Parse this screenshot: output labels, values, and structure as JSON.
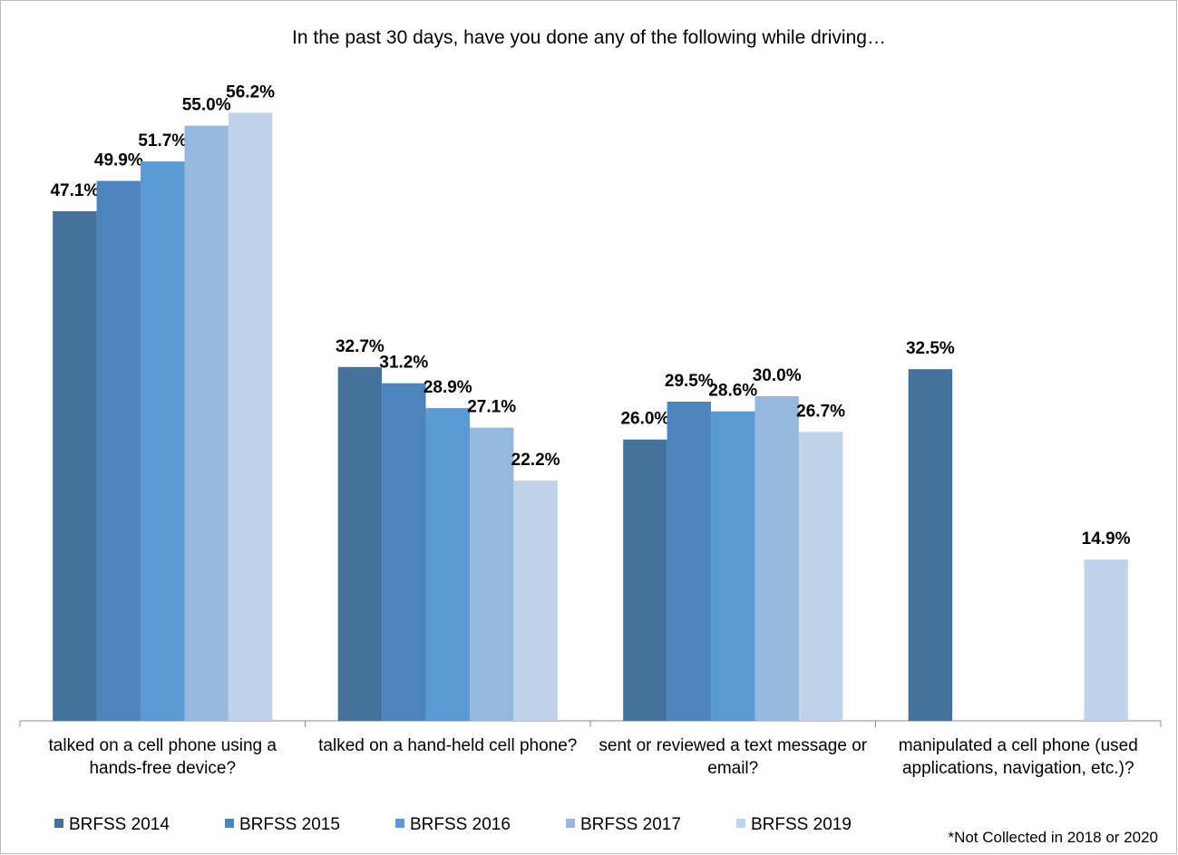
{
  "chart_data": {
    "type": "bar",
    "title": "In the past 30 days, have you done any of the following while driving…",
    "categories": [
      "talked on a cell phone using a hands-free device?",
      "talked on a hand-held cell phone?",
      "sent or reviewed a text message or email?",
      "manipulated a cell phone (used applications, navigation, etc.)?"
    ],
    "series": [
      {
        "name": "BRFSS 2014",
        "color": "#44729d",
        "values": [
          47.1,
          32.7,
          26.0,
          32.5
        ],
        "value_labels": [
          "47.1%",
          "32.7%",
          "26.0%",
          "32.5%"
        ]
      },
      {
        "name": "BRFSS 2015",
        "color": "#4f83bb",
        "values": [
          49.9,
          31.2,
          29.5,
          null
        ],
        "value_labels": [
          "49.9%",
          "31.2%",
          "29.5%",
          null
        ]
      },
      {
        "name": "BRFSS 2016",
        "color": "#5b9bd5",
        "values": [
          51.7,
          28.9,
          28.6,
          null
        ],
        "value_labels": [
          "51.7%",
          "28.9%",
          "28.6%",
          null
        ]
      },
      {
        "name": "BRFSS 2017",
        "color": "#97b8de",
        "values": [
          55.0,
          27.1,
          30.0,
          null
        ],
        "value_labels": [
          "55.0%",
          "27.1%",
          "30.0%",
          null
        ]
      },
      {
        "name": "BRFSS 2019",
        "color": "#c0d2ea",
        "values": [
          56.2,
          22.2,
          26.7,
          14.9
        ],
        "value_labels": [
          "56.2%",
          "22.2%",
          "26.7%",
          "14.9%"
        ]
      }
    ],
    "ylim": [
      0,
      60
    ],
    "legend": "bottom",
    "note": "*Not Collected in 2018 or 2020"
  }
}
